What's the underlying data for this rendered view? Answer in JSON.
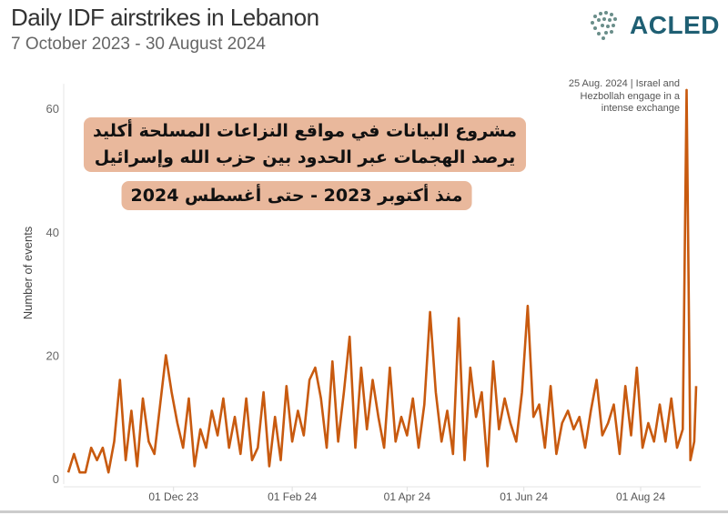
{
  "header": {
    "title": "Daily IDF airstrikes in Lebanon",
    "subtitle": "7 October 2023 - 30 August 2024",
    "logo_text": "ACLED",
    "logo_color": "#1f5f73"
  },
  "overlay": {
    "line1": "مشروع البيانات في مواقع النزاعات المسلحة أكليد",
    "line2": "يرصد الهجمات عبر الحدود بين حزب الله وإسرائيل",
    "line3": "منذ أكتوبر 2023 - حتى أغسطس 2024",
    "box_color": "#e9b89c"
  },
  "chart_data": {
    "type": "line",
    "title": "Daily IDF airstrikes in Lebanon",
    "subtitle": "7 October 2023 - 30 August 2024",
    "ylabel": "Number of events",
    "xlabel": "",
    "ylim": [
      0,
      64
    ],
    "xlim": [
      "2023-10-07",
      "2024-08-30"
    ],
    "yticks": [
      0,
      20,
      40,
      60
    ],
    "xticks": [
      {
        "date": "2023-12-01",
        "label": "01 Dec 23"
      },
      {
        "date": "2024-02-01",
        "label": "01 Feb 24"
      },
      {
        "date": "2024-04-01",
        "label": "01 Apr 24"
      },
      {
        "date": "2024-06-01",
        "label": "01 Jun 24"
      },
      {
        "date": "2024-08-01",
        "label": "01 Aug 24"
      }
    ],
    "grid": false,
    "line_color": "#c85a0f",
    "annotation": {
      "date": "2024-08-25",
      "lines": [
        "25 Aug. 2024 | Israel and",
        "Hezbollah engage in a",
        "intense exchange"
      ]
    },
    "series": [
      {
        "x": [
          "2023-10-07",
          "2023-10-10",
          "2023-10-13",
          "2023-10-16",
          "2023-10-19",
          "2023-10-22",
          "2023-10-25",
          "2023-10-28",
          "2023-10-31",
          "2023-11-03",
          "2023-11-06",
          "2023-11-09",
          "2023-11-12",
          "2023-11-15",
          "2023-11-18",
          "2023-11-21",
          "2023-11-24",
          "2023-11-27",
          "2023-11-30",
          "2023-12-03",
          "2023-12-06",
          "2023-12-09",
          "2023-12-12",
          "2023-12-15",
          "2023-12-18",
          "2023-12-21",
          "2023-12-24",
          "2023-12-27",
          "2023-12-30",
          "2024-01-02",
          "2024-01-05",
          "2024-01-08",
          "2024-01-11",
          "2024-01-14",
          "2024-01-17",
          "2024-01-20",
          "2024-01-23",
          "2024-01-26",
          "2024-01-29",
          "2024-02-01",
          "2024-02-04",
          "2024-02-07",
          "2024-02-10",
          "2024-02-13",
          "2024-02-16",
          "2024-02-19",
          "2024-02-22",
          "2024-02-25",
          "2024-02-28",
          "2024-03-02",
          "2024-03-05",
          "2024-03-08",
          "2024-03-11",
          "2024-03-14",
          "2024-03-17",
          "2024-03-20",
          "2024-03-23",
          "2024-03-26",
          "2024-03-29",
          "2024-04-01",
          "2024-04-04",
          "2024-04-07",
          "2024-04-10",
          "2024-04-13",
          "2024-04-16",
          "2024-04-19",
          "2024-04-22",
          "2024-04-25",
          "2024-04-28",
          "2024-05-01",
          "2024-05-04",
          "2024-05-07",
          "2024-05-10",
          "2024-05-13",
          "2024-05-16",
          "2024-05-19",
          "2024-05-22",
          "2024-05-25",
          "2024-05-28",
          "2024-05-31",
          "2024-06-03",
          "2024-06-06",
          "2024-06-09",
          "2024-06-12",
          "2024-06-15",
          "2024-06-18",
          "2024-06-21",
          "2024-06-24",
          "2024-06-27",
          "2024-06-30",
          "2024-07-03",
          "2024-07-06",
          "2024-07-09",
          "2024-07-12",
          "2024-07-15",
          "2024-07-18",
          "2024-07-21",
          "2024-07-24",
          "2024-07-27",
          "2024-07-30",
          "2024-08-02",
          "2024-08-05",
          "2024-08-08",
          "2024-08-11",
          "2024-08-14",
          "2024-08-17",
          "2024-08-20",
          "2024-08-23",
          "2024-08-25",
          "2024-08-27",
          "2024-08-29",
          "2024-08-30"
        ],
        "y": [
          1,
          4,
          1,
          1,
          5,
          3,
          5,
          1,
          6,
          16,
          3,
          11,
          2,
          13,
          6,
          4,
          12,
          20,
          14,
          9,
          5,
          13,
          2,
          8,
          5,
          11,
          7,
          13,
          5,
          10,
          4,
          13,
          3,
          5,
          14,
          2,
          10,
          3,
          15,
          6,
          11,
          7,
          16,
          18,
          13,
          5,
          19,
          6,
          14,
          23,
          5,
          18,
          8,
          16,
          10,
          5,
          18,
          6,
          10,
          7,
          13,
          5,
          12,
          27,
          14,
          6,
          11,
          4,
          26,
          3,
          18,
          10,
          14,
          2,
          19,
          8,
          13,
          9,
          6,
          14,
          28,
          10,
          12,
          5,
          15,
          4,
          9,
          11,
          8,
          10,
          5,
          11,
          16,
          7,
          9,
          12,
          4,
          15,
          7,
          18,
          5,
          9,
          6,
          12,
          6,
          13,
          5,
          8,
          63,
          3,
          6,
          15
        ]
      }
    ]
  }
}
